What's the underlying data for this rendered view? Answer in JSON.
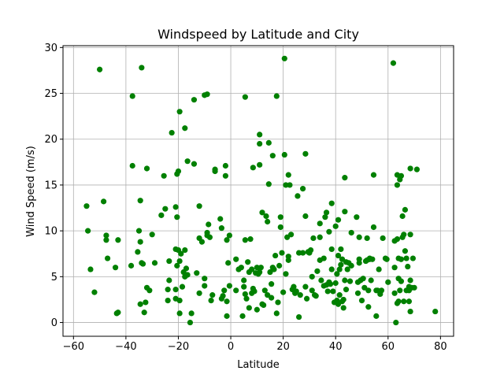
{
  "chart_data": {
    "type": "scatter",
    "title": "Windspeed by Latitude and City",
    "xlabel": "Latitude",
    "ylabel": "Wind Speed (m/s)",
    "xlim": [
      -64,
      85
    ],
    "ylim": [
      -1.5,
      30.2
    ],
    "xticks": [
      -60,
      -40,
      -20,
      0,
      20,
      40,
      60,
      80
    ],
    "yticks": [
      0,
      5,
      10,
      15,
      20,
      25,
      30
    ],
    "grid": true,
    "marker_color": "#008000",
    "series": [
      {
        "points": [
          [
            -55,
            12.7
          ],
          [
            -54.5,
            10.0
          ],
          [
            -53.5,
            5.8
          ],
          [
            -52,
            3.3
          ],
          [
            -50,
            27.6
          ],
          [
            -48.5,
            13.2
          ],
          [
            -47.5,
            9.5
          ],
          [
            -47.5,
            9.0
          ],
          [
            -47,
            7.0
          ],
          [
            -43.5,
            1.0
          ],
          [
            -43,
            1.1
          ],
          [
            -43,
            9.0
          ],
          [
            -44,
            6.0
          ],
          [
            -38,
            6.2
          ],
          [
            -37.5,
            24.7
          ],
          [
            -37.5,
            17.1
          ],
          [
            -35.5,
            7.7
          ],
          [
            -35,
            10.0
          ],
          [
            -34.5,
            13.3
          ],
          [
            -34.5,
            8.8
          ],
          [
            -34,
            27.8
          ],
          [
            -34,
            6.5
          ],
          [
            -33.5,
            6.4
          ],
          [
            -34.5,
            2.0
          ],
          [
            -33,
            1.1
          ],
          [
            -32.5,
            2.2
          ],
          [
            -32,
            16.8
          ],
          [
            -32,
            3.8
          ],
          [
            -31,
            3.5
          ],
          [
            -30,
            9.6
          ],
          [
            -29,
            6.5
          ],
          [
            -26.5,
            11.7
          ],
          [
            -25.5,
            16.0
          ],
          [
            -25,
            12.4
          ],
          [
            -24,
            2.4
          ],
          [
            -24,
            3.6
          ],
          [
            -23.5,
            6.7
          ],
          [
            -23.5,
            4.6
          ],
          [
            -22.5,
            20.7
          ],
          [
            -21,
            12.6
          ],
          [
            -21,
            8.0
          ],
          [
            -21,
            3.6
          ],
          [
            -21,
            2.6
          ],
          [
            -20.5,
            16.2
          ],
          [
            -20.5,
            11.5
          ],
          [
            -20.5,
            6.2
          ],
          [
            -20,
            16.5
          ],
          [
            -20,
            7.9
          ],
          [
            -19.5,
            23.0
          ],
          [
            -19.5,
            6.7
          ],
          [
            -19.5,
            2.4
          ],
          [
            -19.5,
            1.0
          ],
          [
            -19,
            7.5
          ],
          [
            -18.5,
            3.9
          ],
          [
            -18,
            5.5
          ],
          [
            -17.5,
            21.2
          ],
          [
            -17.5,
            7.9
          ],
          [
            -17.5,
            5.0
          ],
          [
            -17,
            5.9
          ],
          [
            -16.5,
            5.2
          ],
          [
            -16.5,
            17.6
          ],
          [
            -15.5,
            0.0
          ],
          [
            -15,
            1.0
          ],
          [
            -14,
            24.3
          ],
          [
            -14,
            17.3
          ],
          [
            -13,
            5.4
          ],
          [
            -12,
            12.7
          ],
          [
            -12,
            9.2
          ],
          [
            -12,
            3.2
          ],
          [
            -11,
            8.8
          ],
          [
            -10,
            4.8
          ],
          [
            -10,
            4.0
          ],
          [
            -10,
            24.8
          ],
          [
            -9,
            24.9
          ],
          [
            -9,
            9.5
          ],
          [
            -9,
            9.8
          ],
          [
            -8.5,
            10.7
          ],
          [
            -8,
            9.3
          ],
          [
            -7.5,
            2.4
          ],
          [
            -7,
            3.0
          ],
          [
            -6,
            16.5
          ],
          [
            -6,
            16.7
          ],
          [
            -4,
            11.3
          ],
          [
            -3.5,
            10.3
          ],
          [
            -3.5,
            2.6
          ],
          [
            -3,
            2.9
          ],
          [
            -2.5,
            3.5
          ],
          [
            -2,
            17.1
          ],
          [
            -2,
            16.0
          ],
          [
            -1.5,
            2.3
          ],
          [
            -1.5,
            0.7
          ],
          [
            -1.5,
            9.0
          ],
          [
            -1,
            6.5
          ],
          [
            -0.5,
            9.5
          ],
          [
            -0.5,
            4.0
          ],
          [
            2,
            6.9
          ],
          [
            2,
            3.5
          ],
          [
            3,
            5.8
          ],
          [
            4,
            6.0
          ],
          [
            4.5,
            0.7
          ],
          [
            5,
            4.6
          ],
          [
            5,
            3.9
          ],
          [
            5.5,
            24.6
          ],
          [
            5.5,
            9.0
          ],
          [
            5.5,
            3.1
          ],
          [
            6,
            2.6
          ],
          [
            6.5,
            6.6
          ],
          [
            7,
            5.5
          ],
          [
            7,
            1.6
          ],
          [
            7.5,
            9.1
          ],
          [
            8,
            5.8
          ],
          [
            8,
            3.2
          ],
          [
            8.5,
            3.7
          ],
          [
            8.5,
            16.9
          ],
          [
            9,
            3.4
          ],
          [
            9.5,
            5.4
          ],
          [
            10,
            6.0
          ],
          [
            10,
            1.4
          ],
          [
            10.5,
            5.3
          ],
          [
            11,
            20.5
          ],
          [
            11,
            19.5
          ],
          [
            11,
            17.2
          ],
          [
            11,
            5.5
          ],
          [
            11.5,
            6.0
          ],
          [
            12,
            12.0
          ],
          [
            12,
            2.0
          ],
          [
            12.5,
            1.9
          ],
          [
            13,
            3.5
          ],
          [
            13.5,
            11.6
          ],
          [
            14,
            11.0
          ],
          [
            14,
            3.0
          ],
          [
            14.5,
            19.6
          ],
          [
            14.5,
            15.1
          ],
          [
            15,
            5.5
          ],
          [
            15.5,
            4.2
          ],
          [
            15.5,
            2.7
          ],
          [
            16,
            18.2
          ],
          [
            16,
            6.0
          ],
          [
            16.5,
            5.8
          ],
          [
            17,
            7.3
          ],
          [
            17.5,
            24.7
          ],
          [
            17.5,
            1.0
          ],
          [
            18,
            2.2
          ],
          [
            18.5,
            6.2
          ],
          [
            19,
            11.5
          ],
          [
            19,
            10.4
          ],
          [
            19.5,
            7.6
          ],
          [
            20,
            3.3
          ],
          [
            20.5,
            28.8
          ],
          [
            20.5,
            18.3
          ],
          [
            21,
            15.0
          ],
          [
            21,
            5.3
          ],
          [
            21.5,
            9.3
          ],
          [
            22,
            16.1
          ],
          [
            22,
            7.2
          ],
          [
            22,
            6.8
          ],
          [
            22.5,
            15.0
          ],
          [
            23,
            9.6
          ],
          [
            23.5,
            3.6
          ],
          [
            24,
            3.9
          ],
          [
            24.5,
            3.2
          ],
          [
            25,
            3.4
          ],
          [
            25.5,
            13.8
          ],
          [
            26,
            7.6
          ],
          [
            26,
            0.6
          ],
          [
            26.5,
            3.0
          ],
          [
            27.5,
            14.6
          ],
          [
            27.5,
            7.6
          ],
          [
            28.5,
            18.4
          ],
          [
            28.5,
            11.6
          ],
          [
            28.5,
            3.9
          ],
          [
            29,
            2.6
          ],
          [
            29.5,
            7.7
          ],
          [
            30,
            7.6
          ],
          [
            30.5,
            7.9
          ],
          [
            31,
            5.0
          ],
          [
            31,
            3.5
          ],
          [
            31.5,
            9.2
          ],
          [
            32,
            3.0
          ],
          [
            32.5,
            2.9
          ],
          [
            33,
            5.6
          ],
          [
            34,
            10.8
          ],
          [
            34,
            9.3
          ],
          [
            34,
            6.8
          ],
          [
            34.5,
            4.6
          ],
          [
            35.5,
            7.0
          ],
          [
            35.5,
            4.0
          ],
          [
            36,
            11.5
          ],
          [
            36.5,
            12.0
          ],
          [
            36.5,
            4.1
          ],
          [
            37,
            3.4
          ],
          [
            37.5,
            9.9
          ],
          [
            37.5,
            4.4
          ],
          [
            38,
            4.2
          ],
          [
            38.5,
            8.0
          ],
          [
            38.5,
            5.8
          ],
          [
            38.5,
            13.0
          ],
          [
            39,
            3.4
          ],
          [
            39.5,
            2.2
          ],
          [
            40,
            4.3
          ],
          [
            40,
            10.5
          ],
          [
            40.5,
            5.3
          ],
          [
            40.5,
            2.4
          ],
          [
            41,
            7.3
          ],
          [
            41,
            11.2
          ],
          [
            41,
            2.0
          ],
          [
            41.5,
            3.0
          ],
          [
            41.5,
            5.8
          ],
          [
            42,
            8.0
          ],
          [
            42,
            6.3
          ],
          [
            42.5,
            6.9
          ],
          [
            42.5,
            2.3
          ],
          [
            43,
            2.5
          ],
          [
            43,
            1.6
          ],
          [
            43.5,
            15.8
          ],
          [
            43.5,
            12.1
          ],
          [
            43.5,
            4.6
          ],
          [
            44,
            6.6
          ],
          [
            44,
            3.6
          ],
          [
            44.5,
            5.8
          ],
          [
            45,
            6.5
          ],
          [
            45.5,
            4.5
          ],
          [
            46,
            6.2
          ],
          [
            46,
            9.8
          ],
          [
            48,
            11.5
          ],
          [
            48.5,
            4.4
          ],
          [
            48.5,
            3.2
          ],
          [
            49,
            6.5
          ],
          [
            49,
            6.9
          ],
          [
            49,
            9.3
          ],
          [
            49.5,
            4.6
          ],
          [
            50,
            2.4
          ],
          [
            50.5,
            4.8
          ],
          [
            51,
            3.8
          ],
          [
            51.5,
            6.7
          ],
          [
            52,
            9.2
          ],
          [
            52,
            6.8
          ],
          [
            52.5,
            1.7
          ],
          [
            52.5,
            3.5
          ],
          [
            53,
            6.9
          ],
          [
            53,
            7.0
          ],
          [
            53.5,
            4.6
          ],
          [
            54,
            6.9
          ],
          [
            54.5,
            10.4
          ],
          [
            54.5,
            16.1
          ],
          [
            55.5,
            3.5
          ],
          [
            55.5,
            0.7
          ],
          [
            56,
            3.5
          ],
          [
            56.5,
            5.8
          ],
          [
            57,
            3.1
          ],
          [
            57.5,
            3.5
          ],
          [
            58,
            9.2
          ],
          [
            59,
            7.0
          ],
          [
            59.5,
            6.9
          ],
          [
            60,
            4.4
          ],
          [
            62,
            28.3
          ],
          [
            62.5,
            8.9
          ],
          [
            62.5,
            6.0
          ],
          [
            62.5,
            3.2
          ],
          [
            63,
            0.0
          ],
          [
            63.5,
            15.0
          ],
          [
            63.5,
            16.1
          ],
          [
            63.5,
            9.1
          ],
          [
            63.5,
            2.1
          ],
          [
            64,
            7.0
          ],
          [
            64,
            4.8
          ],
          [
            64,
            2.3
          ],
          [
            64.5,
            15.6
          ],
          [
            64.5,
            3.5
          ],
          [
            65,
            16.0
          ],
          [
            65,
            6.9
          ],
          [
            65,
            4.5
          ],
          [
            65.5,
            9.3
          ],
          [
            65.5,
            11.6
          ],
          [
            66,
            9.6
          ],
          [
            66,
            2.3
          ],
          [
            66.5,
            12.3
          ],
          [
            66.5,
            7.8
          ],
          [
            67,
            3.5
          ],
          [
            67,
            7.0
          ],
          [
            67.5,
            6.1
          ],
          [
            68,
            3.9
          ],
          [
            68,
            3.5
          ],
          [
            68,
            2.3
          ],
          [
            68.5,
            9.6
          ],
          [
            68.5,
            4.6
          ],
          [
            68.5,
            1.2
          ],
          [
            68.5,
            16.8
          ],
          [
            69,
            3.8
          ],
          [
            69.5,
            7.0
          ],
          [
            70,
            3.8
          ],
          [
            71,
            16.7
          ],
          [
            78,
            1.2
          ]
        ]
      }
    ]
  }
}
